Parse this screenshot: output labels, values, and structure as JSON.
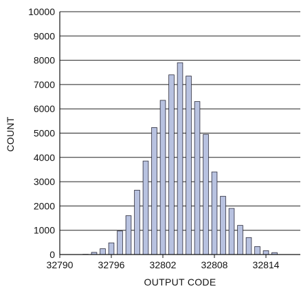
{
  "chart_data": {
    "type": "bar",
    "title": "",
    "xlabel": "OUTPUT CODE",
    "ylabel": "COUNT",
    "xlim": [
      32790,
      32818
    ],
    "ylim": [
      0,
      10000
    ],
    "xticks": [
      32790,
      32796,
      32802,
      32808,
      32814
    ],
    "yticks": [
      0,
      1000,
      2000,
      3000,
      4000,
      5000,
      6000,
      7000,
      8000,
      9000,
      10000
    ],
    "grid": "horizontal",
    "bar_color": "#b8c2e0",
    "bar_edge_color": "#2a2a3a",
    "x": [
      32793,
      32794,
      32795,
      32796,
      32797,
      32798,
      32799,
      32800,
      32801,
      32802,
      32803,
      32804,
      32805,
      32806,
      32807,
      32808,
      32809,
      32810,
      32811,
      32812,
      32813,
      32814,
      32815
    ],
    "values": [
      10,
      90,
      240,
      480,
      970,
      1600,
      2650,
      3850,
      5230,
      6350,
      7400,
      7900,
      7350,
      6300,
      4950,
      3400,
      2400,
      1900,
      1200,
      700,
      330,
      160,
      80
    ]
  }
}
